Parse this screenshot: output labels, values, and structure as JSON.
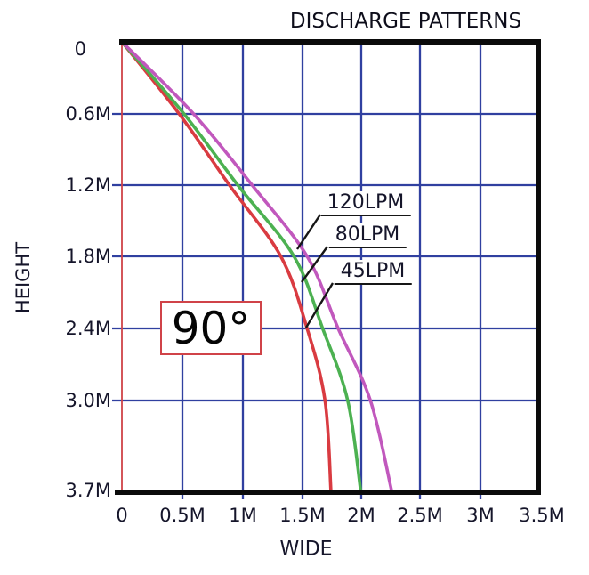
{
  "title": "DISCHARGE PATTERNS",
  "angle_label": "90°",
  "x_axis": {
    "label": "WIDE",
    "ticks": [
      "0",
      "0.5M",
      "1M",
      "1.5M",
      "2M",
      "2.5M",
      "3M",
      "3.5M"
    ]
  },
  "y_axis": {
    "label": "HEIGHT",
    "ticks": [
      "0",
      "0.6M",
      "1.2M",
      "1.8M",
      "2.4M",
      "3.0M",
      "3.7M"
    ]
  },
  "colors": {
    "grid": "#3040a0",
    "axis_red": "#d04348",
    "border": "#0b0b0b",
    "text": "#15152a",
    "leader": "#161616"
  },
  "chart_data": {
    "type": "line",
    "title": "DISCHARGE PATTERNS",
    "xlabel": "WIDE",
    "ylabel": "HEIGHT",
    "units": "meters",
    "xlim": [
      0,
      3.5
    ],
    "ylim": [
      0,
      3.7
    ],
    "y_inverted": true,
    "grid": true,
    "x_grid_step": 0.5,
    "y_grid_step": 0.6,
    "legend_position": "inline-callouts",
    "heights_m": [
      0,
      0.6,
      1.2,
      1.8,
      2.4,
      3.0,
      3.7
    ],
    "series": [
      {
        "name": "45LPM",
        "color": "#d93b41",
        "widths_m": [
          0,
          0.48,
          0.9,
          1.33,
          1.55,
          1.7,
          1.75
        ]
      },
      {
        "name": "80LPM",
        "color": "#4cb151",
        "widths_m": [
          0,
          0.52,
          0.97,
          1.44,
          1.68,
          1.89,
          2.0
        ]
      },
      {
        "name": "120LPM",
        "color": "#c158bd",
        "widths_m": [
          0,
          0.6,
          1.09,
          1.55,
          1.81,
          2.08,
          2.26
        ]
      }
    ],
    "annotations": [
      {
        "label": "120LPM",
        "points_to": "120LPM curve"
      },
      {
        "label": "80LPM",
        "points_to": "80LPM curve"
      },
      {
        "label": "45LPM",
        "points_to": "45LPM curve"
      },
      {
        "label": "90°",
        "meaning": "discharge angle"
      }
    ]
  }
}
